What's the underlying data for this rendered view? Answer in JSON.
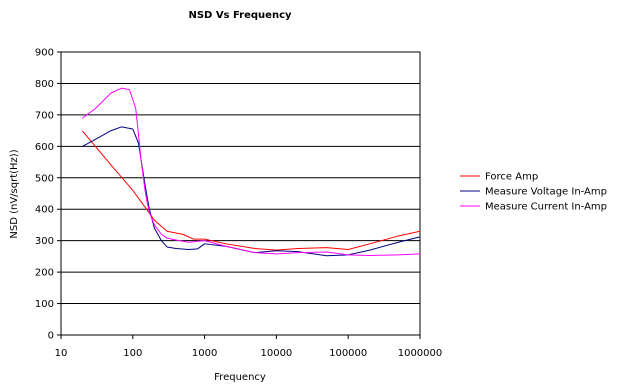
{
  "chart_data": {
    "type": "line",
    "title": "NSD Vs Frequency",
    "xlabel": "Frequency",
    "ylabel": "NSD (nV/sqrt(Hz))",
    "xscale": "log",
    "xlim": [
      10,
      1000000
    ],
    "ylim": [
      0,
      900
    ],
    "xticks": [
      "10",
      "100",
      "1000",
      "10000",
      "100000",
      "1000000"
    ],
    "yticks": [
      "0",
      "100",
      "200",
      "300",
      "400",
      "500",
      "600",
      "700",
      "800",
      "900"
    ],
    "grid": "horizontal",
    "legend_position": "right",
    "series": [
      {
        "name": "Force Amp",
        "color": "#ff0000",
        "x": [
          20,
          50,
          100,
          150,
          200,
          300,
          500,
          700,
          1000,
          2000,
          5000,
          10000,
          20000,
          50000,
          100000,
          200000,
          500000,
          1000000
        ],
        "y": [
          648,
          540,
          460,
          405,
          365,
          330,
          320,
          305,
          305,
          290,
          275,
          270,
          275,
          278,
          272,
          290,
          315,
          330
        ]
      },
      {
        "name": "Measure Voltage In-Amp",
        "color": "#000080",
        "x": [
          20,
          30,
          50,
          70,
          100,
          120,
          150,
          170,
          200,
          250,
          300,
          400,
          600,
          800,
          1000,
          2000,
          5000,
          10000,
          20000,
          50000,
          100000,
          200000,
          500000,
          1000000
        ],
        "y": [
          600,
          622,
          650,
          662,
          655,
          610,
          470,
          400,
          340,
          300,
          280,
          275,
          272,
          274,
          290,
          282,
          262,
          268,
          265,
          252,
          255,
          270,
          295,
          312
        ]
      },
      {
        "name": "Measure Current In-Amp",
        "color": "#ff00ff",
        "x": [
          20,
          30,
          50,
          70,
          90,
          110,
          130,
          150,
          170,
          200,
          250,
          300,
          400,
          600,
          1000,
          2000,
          5000,
          10000,
          20000,
          50000,
          100000,
          200000,
          500000,
          1000000
        ],
        "y": [
          690,
          720,
          770,
          785,
          780,
          720,
          560,
          450,
          390,
          350,
          320,
          308,
          302,
          295,
          300,
          282,
          262,
          258,
          262,
          264,
          255,
          253,
          255,
          258
        ]
      }
    ]
  }
}
